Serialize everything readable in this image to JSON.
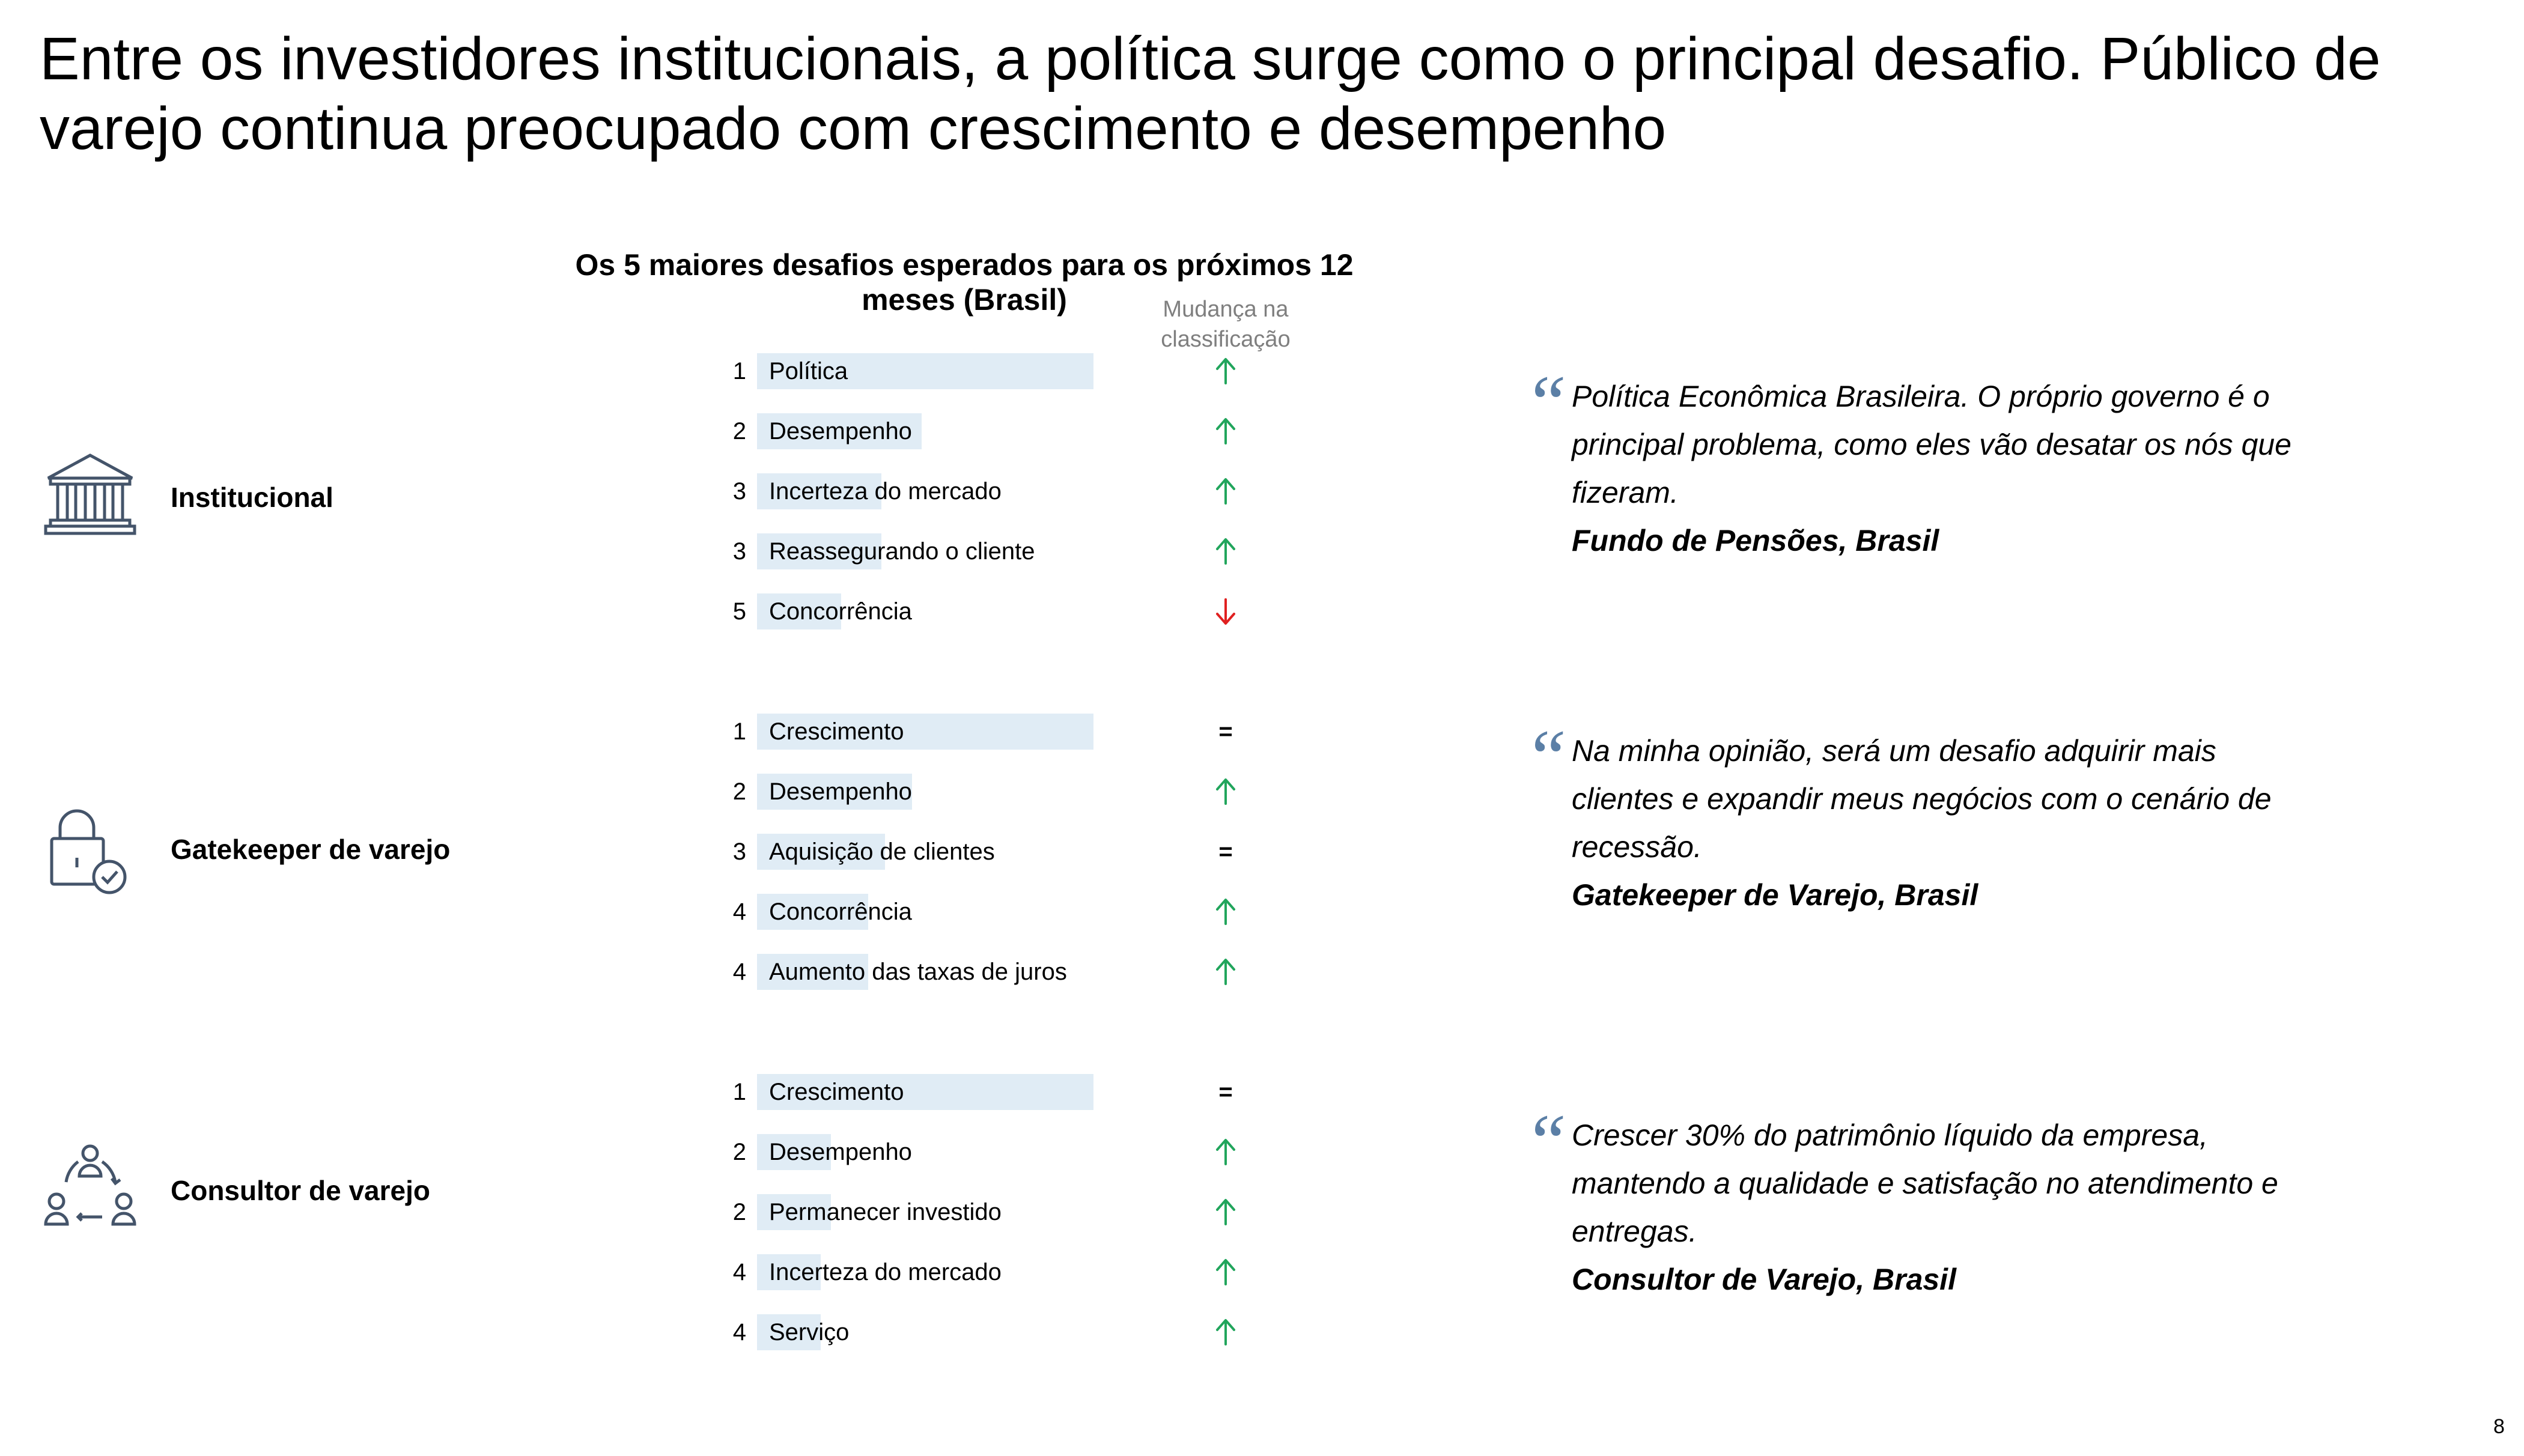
{
  "title": "Entre os investidores institucionais, a política surge como o principal desafio. Público de varejo continua preocupado com crescimento e desempenho",
  "chart_data": {
    "type": "bar",
    "title": "Os 5 maiores desafios esperados para os próximos 12 meses (Brasil)",
    "change_header": "Mudança na classificação",
    "colors": {
      "bar": "#e0ecf5",
      "up": "#21a55c",
      "down": "#e02020",
      "quote": "#5b7fa6"
    },
    "groups": [
      {
        "segment": "Institucional",
        "icon": "bank-icon",
        "items": [
          {
            "rank": "1",
            "label": "Política",
            "value": 100,
            "change": "up"
          },
          {
            "rank": "2",
            "label": "Desempenho",
            "value": 49,
            "change": "up"
          },
          {
            "rank": "3",
            "label": "Incerteza do mercado",
            "value": 37,
            "change": "up"
          },
          {
            "rank": "3",
            "label": "Reassegurando o cliente",
            "value": 37,
            "change": "up"
          },
          {
            "rank": "5",
            "label": "Concorrência",
            "value": 25,
            "change": "down"
          }
        ]
      },
      {
        "segment": "Gatekeeper de varejo",
        "icon": "lock-check-icon",
        "items": [
          {
            "rank": "1",
            "label": "Crescimento",
            "value": 100,
            "change": "same"
          },
          {
            "rank": "2",
            "label": "Desempenho",
            "value": 46,
            "change": "up"
          },
          {
            "rank": "3",
            "label": "Aquisição de clientes",
            "value": 38,
            "change": "same"
          },
          {
            "rank": "4",
            "label": "Concorrência",
            "value": 33,
            "change": "up"
          },
          {
            "rank": "4",
            "label": "Aumento das taxas de juros",
            "value": 33,
            "change": "up"
          }
        ]
      },
      {
        "segment": "Consultor de varejo",
        "icon": "people-cycle-icon",
        "items": [
          {
            "rank": "1",
            "label": "Crescimento",
            "value": 100,
            "change": "same"
          },
          {
            "rank": "2",
            "label": "Desempenho",
            "value": 22,
            "change": "up"
          },
          {
            "rank": "2",
            "label": "Permanecer investido",
            "value": 22,
            "change": "up"
          },
          {
            "rank": "4",
            "label": "Incerteza do mercado",
            "value": 19,
            "change": "up"
          },
          {
            "rank": "4",
            "label": "Serviço",
            "value": 19,
            "change": "up"
          }
        ]
      }
    ]
  },
  "quotes": [
    {
      "text": "Política Econômica Brasileira. O próprio governo é o principal problema, como eles vão desatar os nós que fizeram.",
      "source": "Fundo de Pensões, Brasil"
    },
    {
      "text": "Na minha opinião, será um desafio adquirir mais clientes e expandir meus negócios com o cenário de recessão.",
      "source": "Gatekeeper de Varejo, Brasil"
    },
    {
      "text": "Crescer 30% do patrimônio líquido da empresa, mantendo a qualidade e satisfação no atendimento e entregas.",
      "source": "Consultor de Varejo, Brasil"
    }
  ],
  "quote_mark": "“",
  "equal_sign": "=",
  "page_number": "8"
}
